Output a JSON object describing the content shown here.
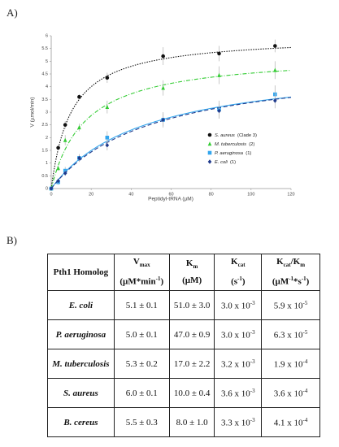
{
  "panel_a_label": "A)",
  "chart_data": {
    "type": "scatter",
    "x_label": "Peptidyl-tRNA (µM)",
    "y_label": "V (µmol/min)",
    "xlim": [
      0,
      120
    ],
    "ylim": [
      0,
      6
    ],
    "xticks": [
      0,
      20,
      40,
      60,
      80,
      100,
      120
    ],
    "yticks": [
      0,
      0.5,
      1,
      1.5,
      2,
      2.5,
      3,
      3.5,
      4,
      4.5,
      5,
      5.5,
      6
    ],
    "grid": false,
    "legend": "right",
    "x": [
      0,
      3.5,
      7,
      14,
      28,
      56,
      84,
      112
    ],
    "series": [
      {
        "name": "S. aureus",
        "note": "(Clade 3)",
        "color": "#111111",
        "marker": "circle",
        "line_style": "dotted",
        "values": [
          0,
          1.6,
          2.5,
          3.6,
          4.35,
          5.2,
          5.3,
          5.6
        ],
        "errors": [
          0,
          0.1,
          0.15,
          0.1,
          0.2,
          0.35,
          0.3,
          0.25
        ],
        "fit": {
          "vmax": 6.0,
          "km": 10.0
        }
      },
      {
        "name": "M. tuberculosis",
        "note": "(2)",
        "color": "#33cc33",
        "marker": "triangle",
        "line_style": "dashdot",
        "values": [
          0,
          0.8,
          1.9,
          2.4,
          3.2,
          3.95,
          4.45,
          4.65
        ],
        "errors": [
          0,
          0.1,
          0.2,
          0.15,
          0.25,
          0.3,
          0.35,
          0.35
        ],
        "fit": {
          "vmax": 5.3,
          "km": 17.0
        }
      },
      {
        "name": "P. aeruginosa",
        "note": "(1)",
        "color": "#33a6ee",
        "marker": "square",
        "line_style": "solid",
        "values": [
          0,
          0.25,
          0.7,
          1.2,
          2.0,
          2.7,
          3.1,
          3.7
        ],
        "errors": [
          0,
          0.1,
          0.15,
          0.15,
          0.25,
          0.3,
          0.35,
          0.35
        ],
        "fit": {
          "vmax": 5.0,
          "km": 47.0
        }
      },
      {
        "name": "E. coli",
        "note": "(1)",
        "color": "#1f3a8c",
        "marker": "diamond",
        "line_style": "dashed",
        "values": [
          0,
          0.3,
          0.6,
          1.2,
          1.7,
          2.7,
          3.05,
          3.45
        ],
        "errors": [
          0,
          0.1,
          0.1,
          0.15,
          0.2,
          0.25,
          0.3,
          0.3
        ],
        "fit": {
          "vmax": 5.1,
          "km": 51.0
        }
      }
    ]
  },
  "panel_b_label": "B)",
  "table": {
    "header": [
      [
        [
          {
            "text": "Pth1 Homolog"
          }
        ]
      ],
      [
        [
          {
            "text": "V"
          },
          {
            "text": "max",
            "sub": true
          }
        ],
        [
          {
            "text": "(µM*min"
          },
          {
            "text": "-1",
            "sup": true
          },
          {
            "text": ")"
          }
        ]
      ],
      [
        [
          {
            "text": "K"
          },
          {
            "text": "m",
            "sub": true
          }
        ],
        [
          {
            "text": "(µM)"
          }
        ]
      ],
      [
        [
          {
            "text": "K"
          },
          {
            "text": "cat",
            "sub": true
          }
        ],
        [
          {
            "text": "(s"
          },
          {
            "text": "-1",
            "sup": true
          },
          {
            "text": ")"
          }
        ]
      ],
      [
        [
          {
            "text": "K"
          },
          {
            "text": "cat",
            "sub": true
          },
          {
            "text": "/K"
          },
          {
            "text": "m",
            "sub": true
          }
        ],
        [
          {
            "text": "(µM"
          },
          {
            "text": "-1",
            "sup": true
          },
          {
            "text": "*s"
          },
          {
            "text": "-1",
            "sup": true
          },
          {
            "text": ")"
          }
        ]
      ]
    ],
    "rows": [
      [
        [
          {
            "text": "E. coli"
          }
        ],
        [
          {
            "text": "5.1 ± 0.1"
          }
        ],
        [
          {
            "text": "51.0 ± 3.0"
          }
        ],
        [
          {
            "text": "3.0 x 10"
          },
          {
            "text": "-3",
            "sup": true
          }
        ],
        [
          {
            "text": "5.9 x 10"
          },
          {
            "text": "-5",
            "sup": true
          }
        ]
      ],
      [
        [
          {
            "text": "P. aeruginosa"
          }
        ],
        [
          {
            "text": "5.0 ± 0.1"
          }
        ],
        [
          {
            "text": "47.0 ± 0.9"
          }
        ],
        [
          {
            "text": "3.0 x 10"
          },
          {
            "text": "-3",
            "sup": true
          }
        ],
        [
          {
            "text": "6.3 x 10"
          },
          {
            "text": "-5",
            "sup": true
          }
        ]
      ],
      [
        [
          {
            "text": "M. tuberculosis"
          }
        ],
        [
          {
            "text": "5.3 ± 0.2"
          }
        ],
        [
          {
            "text": "17.0 ± 2.2"
          }
        ],
        [
          {
            "text": "3.2 x 10"
          },
          {
            "text": "-3",
            "sup": true
          }
        ],
        [
          {
            "text": "1.9 x 10"
          },
          {
            "text": "-4",
            "sup": true
          }
        ]
      ],
      [
        [
          {
            "text": "S. aureus"
          }
        ],
        [
          {
            "text": "6.0 ± 0.1"
          }
        ],
        [
          {
            "text": "10.0 ± 0.4"
          }
        ],
        [
          {
            "text": "3.6 x 10"
          },
          {
            "text": "-3",
            "sup": true
          }
        ],
        [
          {
            "text": "3.6 x 10"
          },
          {
            "text": "-4",
            "sup": true
          }
        ]
      ],
      [
        [
          {
            "text": "B. cereus"
          }
        ],
        [
          {
            "text": "5.5 ± 0.3"
          }
        ],
        [
          {
            "text": "8.0 ± 1.0"
          }
        ],
        [
          {
            "text": "3.3 x 10"
          },
          {
            "text": "-3",
            "sup": true
          }
        ],
        [
          {
            "text": "4.1 x 10"
          },
          {
            "text": "-4",
            "sup": true
          }
        ]
      ]
    ]
  }
}
